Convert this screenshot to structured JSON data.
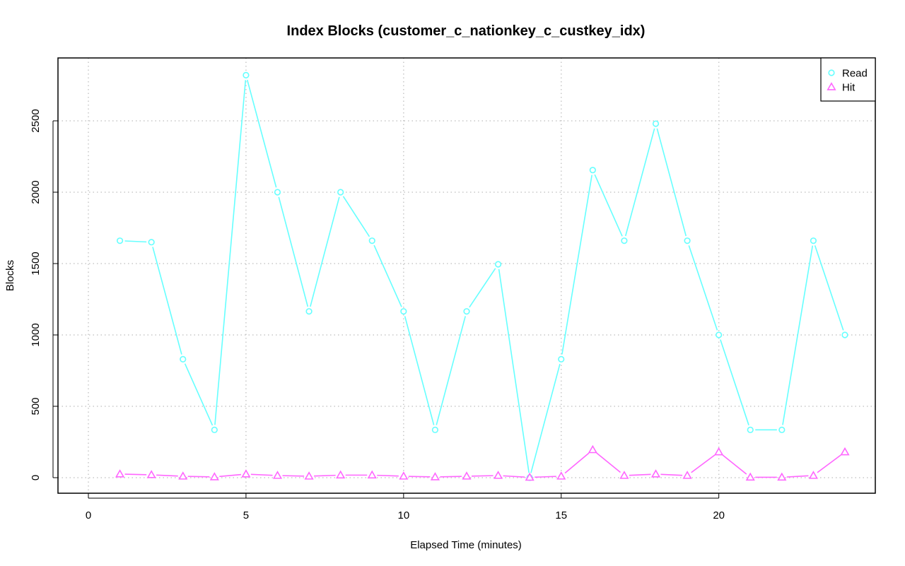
{
  "chart_data": {
    "type": "line",
    "title": "Index Blocks (customer_c_nationkey_c_custkey_idx)",
    "xlabel": "Elapsed Time (minutes)",
    "ylabel": "Blocks",
    "xlim": [
      0,
      25
    ],
    "ylim": [
      0,
      2900
    ],
    "x_ticks": [
      0,
      5,
      10,
      15,
      20
    ],
    "y_ticks": [
      0,
      500,
      1000,
      1500,
      2000,
      2500
    ],
    "grid": true,
    "legend_position": "top-right",
    "x": [
      1,
      2,
      3,
      4,
      5,
      6,
      7,
      8,
      9,
      10,
      11,
      12,
      13,
      14,
      15,
      16,
      17,
      18,
      19,
      20,
      21,
      22,
      23,
      24
    ],
    "series": [
      {
        "name": "Read",
        "color": "#66ffff",
        "marker": "circle",
        "values": [
          1660,
          1650,
          830,
          335,
          2820,
          2000,
          1165,
          2000,
          1660,
          1165,
          335,
          1165,
          1495,
          0,
          830,
          2155,
          1660,
          2480,
          1660,
          1000,
          335,
          335,
          1660,
          1000
        ]
      },
      {
        "name": "Hit",
        "color": "#ff66ff",
        "marker": "triangle",
        "values": [
          25,
          20,
          10,
          5,
          25,
          15,
          10,
          18,
          18,
          10,
          5,
          10,
          15,
          2,
          10,
          195,
          15,
          25,
          15,
          180,
          3,
          3,
          15,
          180
        ]
      }
    ]
  }
}
